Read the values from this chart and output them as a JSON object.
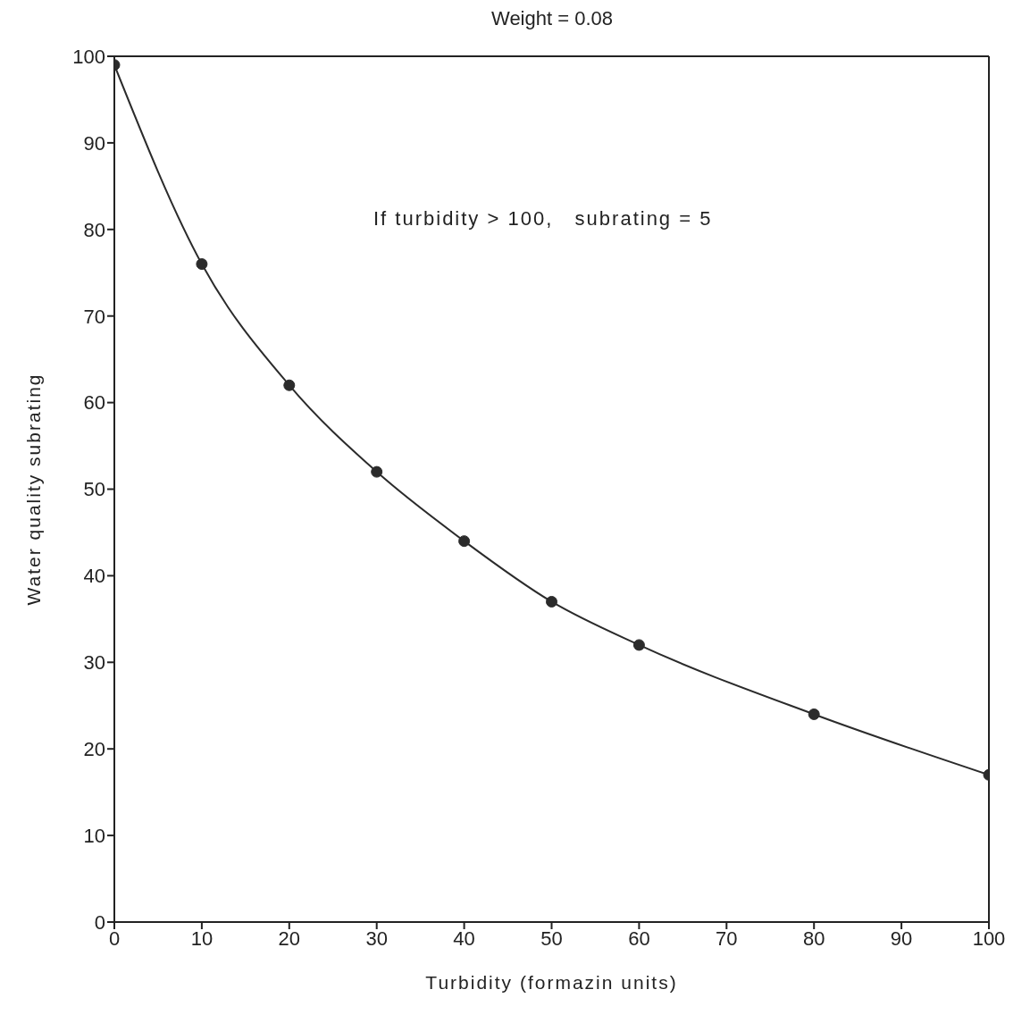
{
  "chart_data": {
    "type": "line",
    "title": "Weight = 0.08",
    "xlabel": "Turbidity (formazin units)",
    "ylabel": "Water quality subrating",
    "x": [
      0,
      10,
      20,
      30,
      40,
      50,
      60,
      80,
      100
    ],
    "series": [
      {
        "color": "#2b2b2b",
        "values": [
          99,
          76,
          62,
          52,
          44,
          37,
          32,
          24,
          17
        ]
      }
    ],
    "xlim": [
      0,
      100
    ],
    "xticks": [
      0,
      10,
      20,
      30,
      40,
      50,
      60,
      70,
      80,
      90,
      100
    ],
    "ylim": [
      0,
      100
    ],
    "yticks": [
      0,
      10,
      20,
      30,
      40,
      50,
      60,
      70,
      80,
      90,
      100
    ],
    "annotations": [
      "If turbidity > 100,   subrating = 5"
    ],
    "marker": "circle",
    "line_style": "solid",
    "legend": false,
    "grid": false
  }
}
